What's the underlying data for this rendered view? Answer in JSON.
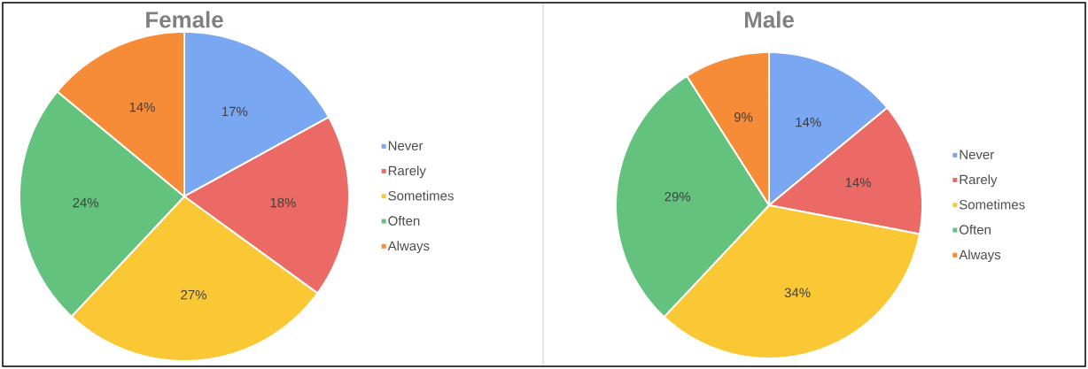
{
  "chart_data": [
    {
      "type": "pie",
      "title": "Female",
      "categories": [
        "Never",
        "Rarely",
        "Sometimes",
        "Often",
        "Always"
      ],
      "values": [
        17,
        18,
        27,
        24,
        14
      ],
      "value_labels": [
        "17%",
        "18%",
        "27%",
        "24%",
        "14%"
      ],
      "colors": [
        "#7aa7f2",
        "#ec6a66",
        "#f9c834",
        "#62c27e",
        "#f68c38"
      ],
      "legend": "right"
    },
    {
      "type": "pie",
      "title": "Male",
      "categories": [
        "Never",
        "Rarely",
        "Sometimes",
        "Often",
        "Always"
      ],
      "values": [
        14,
        14,
        34,
        29,
        9
      ],
      "value_labels": [
        "14%",
        "14%",
        "34%",
        "29%",
        "9%"
      ],
      "colors": [
        "#7aa7f2",
        "#ec6a66",
        "#f9c834",
        "#62c27e",
        "#f68c38"
      ],
      "legend": "right"
    }
  ]
}
